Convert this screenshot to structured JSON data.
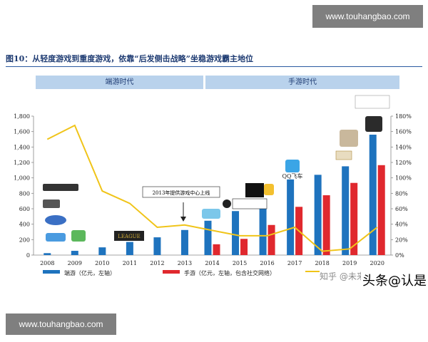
{
  "watermark_top": "www.touhangbao.com",
  "watermark_bottom": "www.touhangbao.com",
  "figure_title": "图10：从轻度游戏到重度游戏，依靠“后发侧击战略”坐稳游戏霸主地位",
  "eras": {
    "left": "端游时代",
    "right": "手游时代"
  },
  "annotation": "2013年提供游戏中心上线",
  "logo_label_qq": "QQ飞车",
  "footer_watermark": "知乎 @未来智库",
  "bubble_text": "头条@认是",
  "colors": {
    "pc": "#1e73be",
    "mobile": "#e0282e",
    "ratio_line": "#f0c419",
    "axis": "#888888"
  },
  "chart_data": {
    "type": "bar",
    "categories": [
      "2008",
      "2009",
      "2010",
      "2011",
      "2012",
      "2013",
      "2014",
      "2015",
      "2016",
      "2017",
      "2018",
      "2019",
      "2020"
    ],
    "series": [
      {
        "name": "端游（亿元，左轴）",
        "type": "bar",
        "axis": "left",
        "values": [
          25,
          55,
          100,
          170,
          230,
          325,
          445,
          570,
          710,
          980,
          1040,
          1150,
          1560
        ]
      },
      {
        "name": "手游（亿元，左轴，包含社交网络）",
        "type": "bar",
        "axis": "left",
        "values": [
          0,
          0,
          0,
          0,
          0,
          0,
          140,
          210,
          390,
          625,
          775,
          935,
          1165
        ]
      },
      {
        "name": "",
        "type": "line",
        "axis": "right",
        "values": [
          150,
          168,
          83,
          67,
          36,
          39,
          32,
          25,
          25,
          36,
          5,
          8,
          36
        ]
      }
    ],
    "ylim_left": [
      0,
      1800
    ],
    "yticks_left": [
      "0",
      "200",
      "400",
      "600",
      "800",
      "1,000",
      "1,200",
      "1,400",
      "1,600",
      "1,800"
    ],
    "ylim_right": [
      0,
      180
    ],
    "yticks_right": [
      "0%",
      "20%",
      "40%",
      "60%",
      "80%",
      "100%",
      "120%",
      "140%",
      "160%",
      "180%"
    ],
    "xlabel": "",
    "ylabel": "",
    "grid": false,
    "legend": "bottom"
  }
}
